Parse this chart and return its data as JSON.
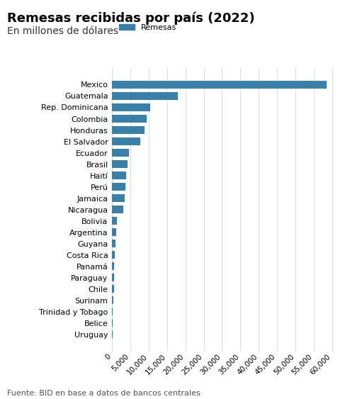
{
  "title": "Remesas recibidas por país (2022)",
  "subtitle": "En millones de dólares",
  "legend_label": "Remesas",
  "footer": "Fuente: BID en base a datos de bancos centrales",
  "bar_color": "#3a7fa8",
  "countries": [
    "Mexico",
    "Guatemala",
    "Rep. Dominicana",
    "Colombia",
    "Honduras",
    "El Salvador",
    "Ecuador",
    "Brasil",
    "Haití",
    "Perú",
    "Jamaica",
    "Nicaragua",
    "Bolivia",
    "Argentina",
    "Guyana",
    "Costa Rica",
    "Panamá",
    "Paraguay",
    "Chile",
    "Surinam",
    "Trinidad y Tobago",
    "Belice",
    "Uruguay"
  ],
  "values": [
    58497,
    18027,
    10432,
    9396,
    8782,
    7659,
    4590,
    4321,
    3800,
    3694,
    3421,
    2987,
    1382,
    1072,
    965,
    820,
    530,
    500,
    490,
    410,
    170,
    130,
    110
  ],
  "xlim": [
    0,
    62000
  ],
  "xticks": [
    0,
    5000,
    10000,
    15000,
    20000,
    25000,
    30000,
    35000,
    40000,
    45000,
    50000,
    55000,
    60000
  ],
  "title_fontsize": 13,
  "subtitle_fontsize": 10,
  "tick_fontsize": 8,
  "footer_fontsize": 8
}
